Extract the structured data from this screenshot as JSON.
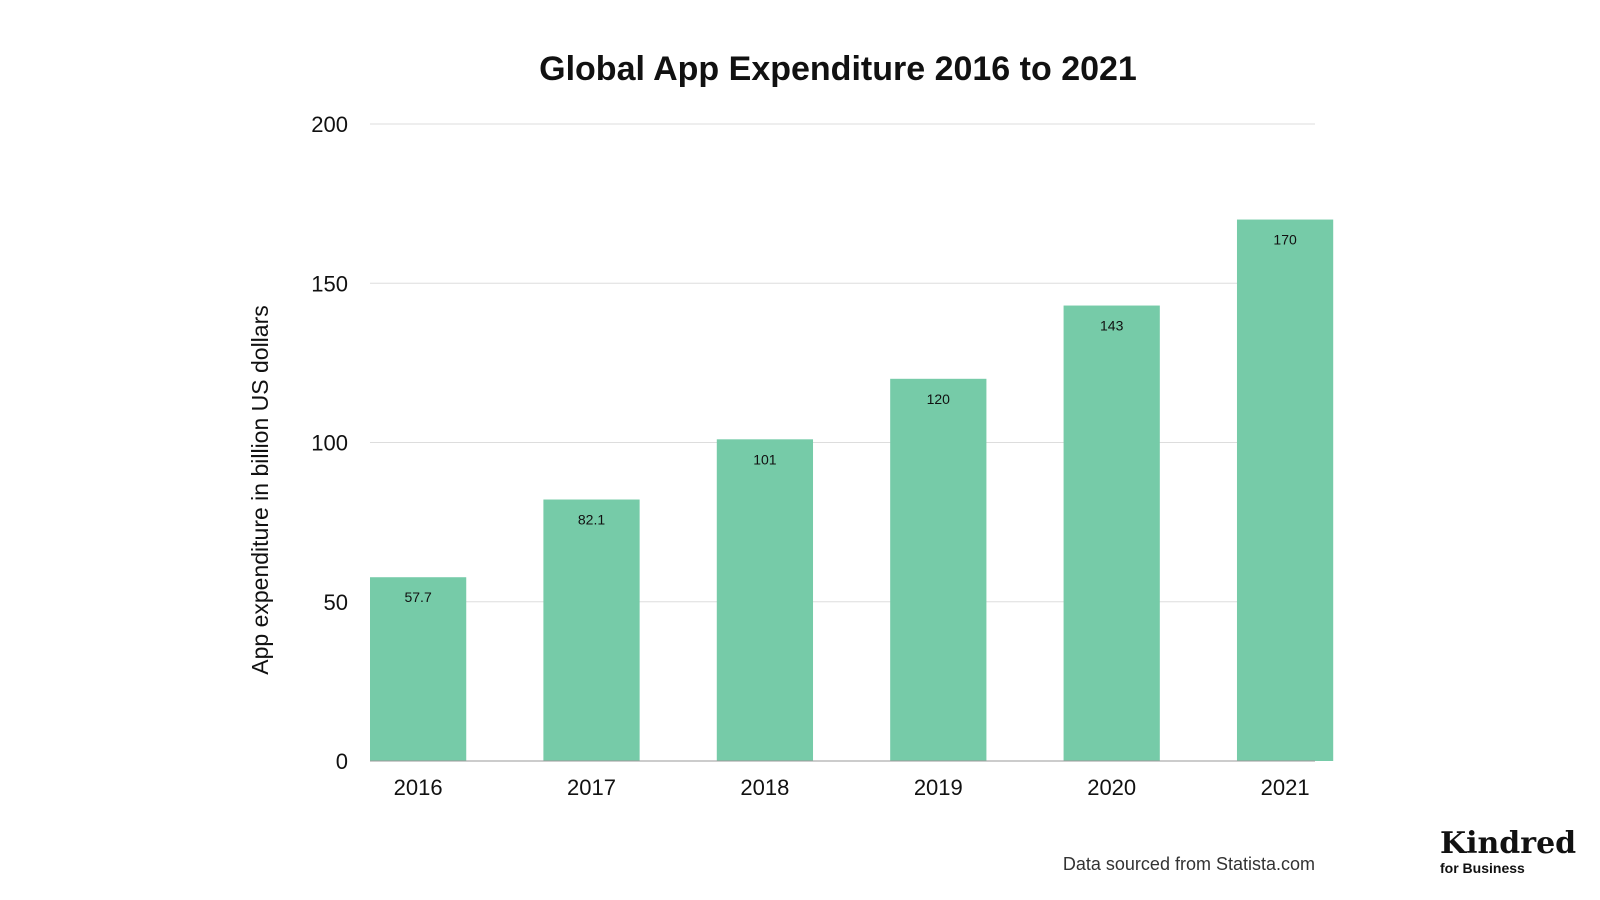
{
  "chart_data": {
    "type": "bar",
    "title": "Global App Expenditure 2016 to 2021",
    "xlabel": "",
    "ylabel": "App expenditure in billion US dollars",
    "categories": [
      "2016",
      "2017",
      "2018",
      "2019",
      "2020",
      "2021"
    ],
    "values": [
      57.7,
      82.1,
      101,
      120,
      143,
      170
    ],
    "value_labels": [
      "57.7",
      "82.1",
      "101",
      "120",
      "143",
      "170"
    ],
    "ylim": [
      0,
      200
    ],
    "yticks": [
      "0",
      "50",
      "100",
      "150",
      "200"
    ],
    "grid": true,
    "legend": "none",
    "bar_color": "#76cba8",
    "gridline_color": "#dddddd"
  },
  "footer": {
    "source": "Data sourced from Statista.com"
  },
  "logo": {
    "name": "Kindred",
    "tagline": "for Business"
  }
}
